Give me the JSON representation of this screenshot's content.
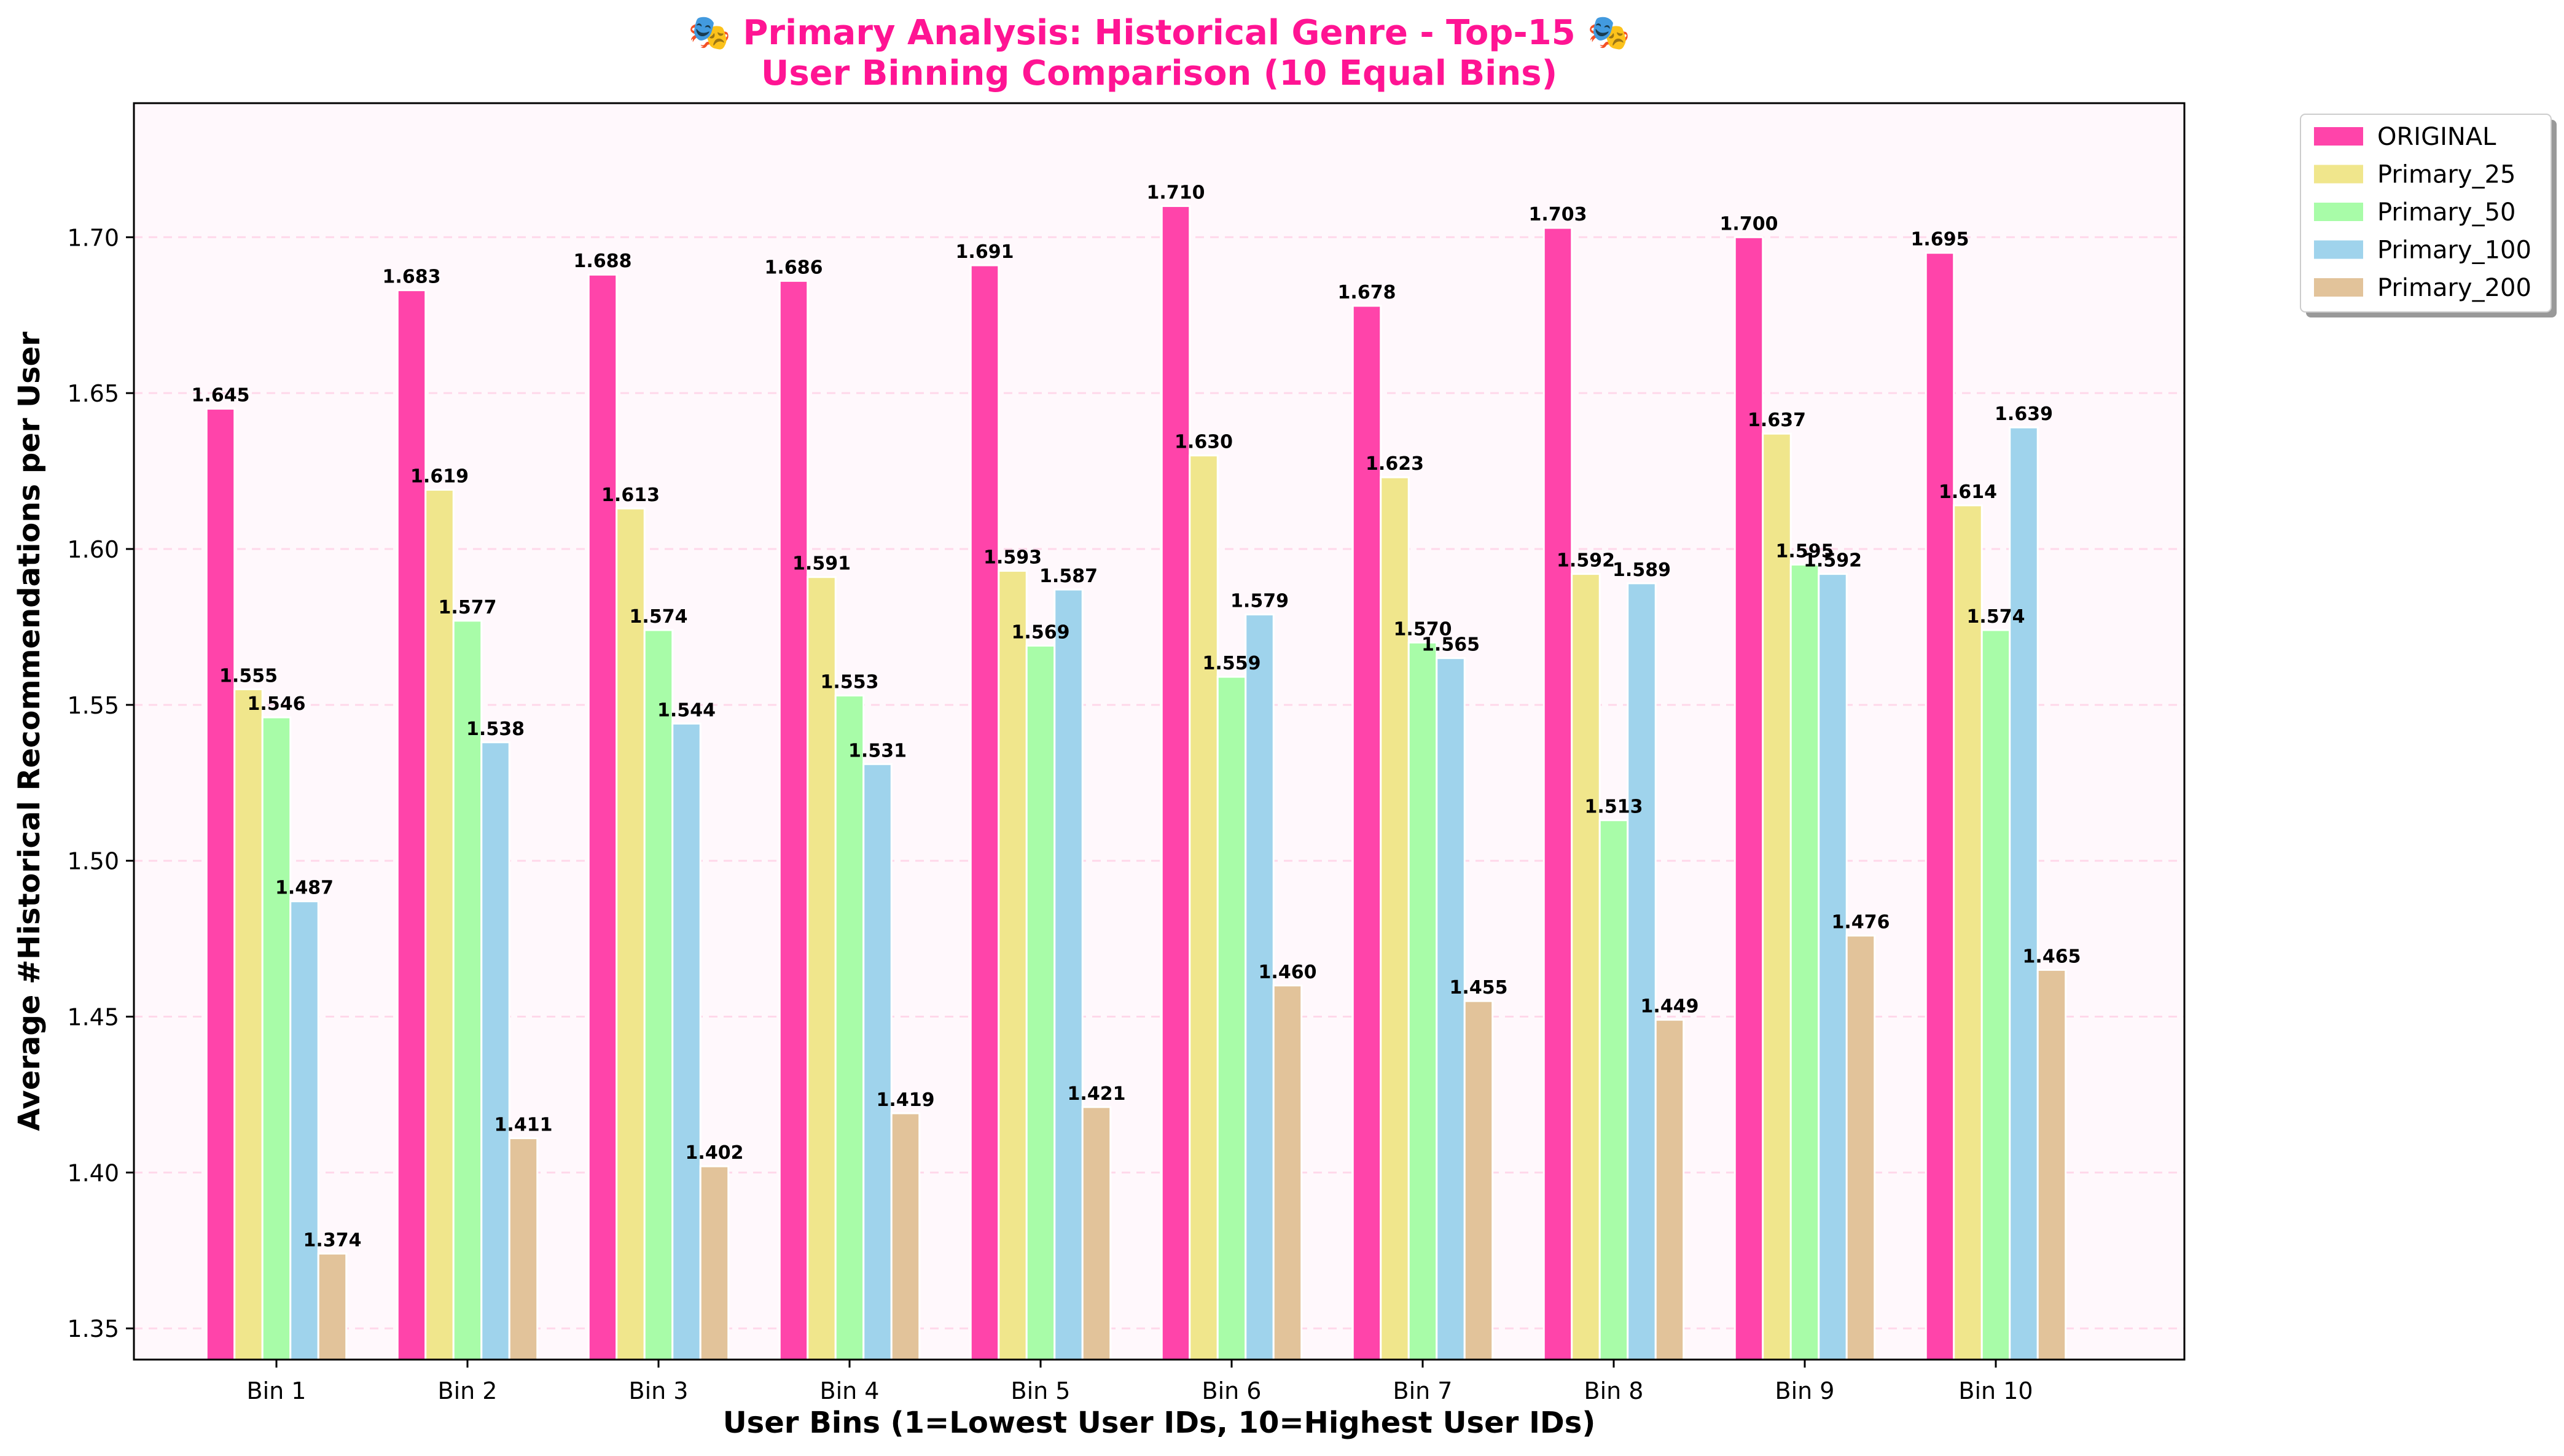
{
  "chart_data": {
    "type": "bar",
    "title": "🎭 Primary Analysis: Historical Genre - Top-15 🎭",
    "subtitle": "User Binning Comparison (10 Equal Bins)",
    "xlabel": "User Bins (1=Lowest User IDs, 10=Highest User IDs)",
    "ylabel": "Average #Historical Recommendations per User",
    "ylim": [
      1.34,
      1.743
    ],
    "yticks": [
      "1.35",
      "1.40",
      "1.45",
      "1.50",
      "1.55",
      "1.60",
      "1.65",
      "1.70"
    ],
    "grid": true,
    "legend_position": "outside-top-right",
    "categories": [
      "Bin 1",
      "Bin 2",
      "Bin 3",
      "Bin 4",
      "Bin 5",
      "Bin 6",
      "Bin 7",
      "Bin 8",
      "Bin 9",
      "Bin 10"
    ],
    "series": [
      {
        "name": "ORIGINAL",
        "color": "#ff44aa",
        "values": [
          1.645,
          1.683,
          1.688,
          1.686,
          1.691,
          1.71,
          1.678,
          1.703,
          1.7,
          1.695
        ]
      },
      {
        "name": "Primary_25",
        "color": "#f0e68c",
        "values": [
          1.555,
          1.619,
          1.613,
          1.591,
          1.593,
          1.63,
          1.623,
          1.592,
          1.637,
          1.614
        ]
      },
      {
        "name": "Primary_50",
        "color": "#a8fca8",
        "values": [
          1.546,
          1.577,
          1.574,
          1.553,
          1.569,
          1.559,
          1.57,
          1.513,
          1.595,
          1.574
        ]
      },
      {
        "name": "Primary_100",
        "color": "#9fd3ec",
        "values": [
          1.487,
          1.538,
          1.544,
          1.531,
          1.587,
          1.579,
          1.565,
          1.589,
          1.592,
          1.639
        ]
      },
      {
        "name": "Primary_200",
        "color": "#e2c39a",
        "values": [
          1.374,
          1.411,
          1.402,
          1.419,
          1.421,
          1.46,
          1.455,
          1.449,
          1.476,
          1.465
        ]
      }
    ],
    "value_labels": [
      [
        "1.645",
        "1.683",
        "1.688",
        "1.686",
        "1.691",
        "1.710",
        "1.678",
        "1.703",
        "1.700",
        "1.695"
      ],
      [
        "1.555",
        "1.619",
        "1.613",
        "1.591",
        "1.593",
        "1.630",
        "1.623",
        "1.592",
        "1.637",
        "1.614"
      ],
      [
        "1.546",
        "1.577",
        "1.574",
        "1.553",
        "1.569",
        "1.559",
        "1.570",
        "1.513",
        "1.595",
        "1.574"
      ],
      [
        "1.487",
        "1.538",
        "1.544",
        "1.531",
        "1.587",
        "1.579",
        "1.565",
        "1.589",
        "1.592",
        "1.639"
      ],
      [
        "1.374",
        "1.411",
        "1.402",
        "1.419",
        "1.421",
        "1.460",
        "1.455",
        "1.449",
        "1.476",
        "1.465"
      ]
    ],
    "colors": {
      "plot_background": "#fff8fc",
      "grid": "#ffd8ea",
      "title": "#ff1493"
    }
  }
}
